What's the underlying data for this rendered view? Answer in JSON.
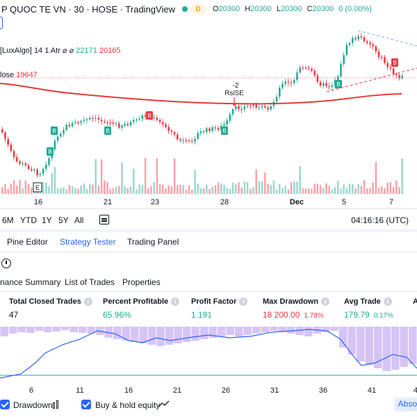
{
  "header": {
    "title": "P QUOC TE VN · 30 · HOSE · TradingView",
    "delay_badge": "D",
    "ohlc": [
      {
        "label": "O",
        "value": "20300"
      },
      {
        "label": "H",
        "value": "20300"
      },
      {
        "label": "L",
        "value": "20300"
      },
      {
        "label": "C",
        "value": "20300"
      }
    ],
    "change": "0 (0.00%)"
  },
  "indicators": {
    "luxalgo_label": "[LuxAlgo]",
    "luxalgo_params": "14 1 Atr",
    "luxalgo_value_up": "22171",
    "luxalgo_value_down": "20165",
    "ma_label": "lose",
    "ma_value": "19647"
  },
  "chart": {
    "annotation_value": "-2",
    "annotation_label": "RsiSE",
    "buy_marker": "B",
    "earnings_marker": "E",
    "colors": {
      "up": "#22ab94",
      "down": "#f23645",
      "ma": "#e53935"
    }
  },
  "x_axis": [
    "16",
    "21",
    "23",
    "28",
    "Dec",
    "5",
    "7"
  ],
  "ranges": [
    "6M",
    "YTD",
    "1Y",
    "5Y",
    "All"
  ],
  "clock": "04:16:16 (UTC)",
  "bottom_tabs": [
    "Pine Editor",
    "Strategy Tester",
    "Trading Panel"
  ],
  "active_tab": "Strategy Tester",
  "sub_tabs": [
    "nance Summary",
    "List of Trades",
    "Properties"
  ],
  "metrics": [
    {
      "label": "Total Closed Trades",
      "value": "47",
      "pct": ""
    },
    {
      "label": "Percent Profitable",
      "value": "65.96%",
      "pct": ""
    },
    {
      "label": "Profit Factor",
      "value": "1.191",
      "pct": ""
    },
    {
      "label": "Max Drawdown",
      "value": "18 200.00",
      "pct": "1.78%"
    },
    {
      "label": "Avg Trade",
      "value": "179.79",
      "pct": "0.17%"
    },
    {
      "label": "A",
      "value": "",
      "pct": ""
    }
  ],
  "equity_axis": [
    "6",
    "11",
    "16",
    "21",
    "26",
    "31",
    "36",
    "41",
    "4"
  ],
  "legend": {
    "drawdown": "Drawdown",
    "buy_hold": "Buy & hold equity",
    "absolute": "Abso"
  }
}
